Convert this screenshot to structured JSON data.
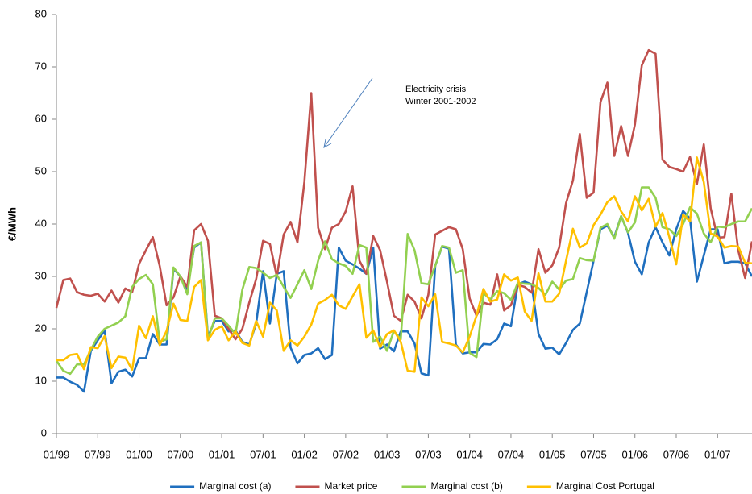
{
  "chart_data": {
    "type": "line",
    "y_label": "€/MWh",
    "annotation": [
      "Electricity crisis",
      "Winter 2001-2002"
    ],
    "categories": [
      "01/99",
      null,
      null,
      null,
      null,
      null,
      "07/99",
      null,
      null,
      null,
      null,
      null,
      "01/00",
      null,
      null,
      null,
      null,
      null,
      "07/00",
      null,
      null,
      null,
      null,
      null,
      "01/01",
      null,
      null,
      null,
      null,
      null,
      "07/01",
      null,
      null,
      null,
      null,
      null,
      "01/02",
      null,
      null,
      null,
      null,
      null,
      "07/02",
      null,
      null,
      null,
      null,
      null,
      "01/03",
      null,
      null,
      null,
      null,
      null,
      "07/03",
      null,
      null,
      null,
      null,
      null,
      "01/04",
      null,
      null,
      null,
      null,
      null,
      "07/04",
      null,
      null,
      null,
      null,
      null,
      "01/05",
      null,
      null,
      null,
      null,
      null,
      "07/05",
      null,
      null,
      null,
      null,
      null,
      "01/06",
      null,
      null,
      null,
      null,
      null,
      "07/06",
      null,
      null,
      null,
      null,
      null,
      "01/07",
      null,
      null,
      null,
      null,
      null
    ],
    "ylim": [
      0,
      80
    ],
    "yticks": [
      0,
      10,
      20,
      30,
      40,
      50,
      60,
      70,
      80
    ],
    "grid": false,
    "series": [
      {
        "name": "Marginal cost (a)",
        "color": "#1f6fbf",
        "values": [
          10.7,
          10.7,
          9.9,
          9.3,
          8,
          15.8,
          17.8,
          19.7,
          9.6,
          11.8,
          12.2,
          10.9,
          14.4,
          14.4,
          19,
          17,
          17,
          31.5,
          30,
          27.5,
          35.5,
          36.5,
          18.5,
          21.5,
          21.5,
          19.5,
          19.7,
          17.5,
          17,
          21,
          31,
          21,
          30.5,
          31,
          16.4,
          13.4,
          15,
          15.3,
          16.3,
          14.2,
          15,
          35.5,
          33,
          32.3,
          31.5,
          30.5,
          35.5,
          16.2,
          17,
          15.7,
          19.5,
          19.5,
          17.2,
          11.5,
          11.1,
          32,
          35.7,
          35.3,
          17,
          15.3,
          15.5,
          15.5,
          17.1,
          17,
          18,
          21,
          20.5,
          28.5,
          29,
          28.5,
          19,
          16.2,
          16.4,
          15.1,
          17.3,
          19.8,
          21,
          27,
          33,
          39,
          39.7,
          37.5,
          41.5,
          38.3,
          32.8,
          30.4,
          36.5,
          39.4,
          36.5,
          34,
          39,
          42.5,
          41,
          29,
          34,
          39,
          39,
          32.5,
          32.8,
          32.8,
          32.5,
          30
        ]
      },
      {
        "name": "Market price",
        "color": "#c0504d",
        "values": [
          24,
          29.3,
          29.6,
          27,
          26.5,
          26.3,
          26.7,
          25.2,
          27.3,
          25,
          27.7,
          27,
          32.4,
          35,
          37.5,
          32,
          24.5,
          26,
          30,
          28,
          38.8,
          40,
          36.8,
          22.5,
          22,
          20,
          18,
          20,
          25,
          29.5,
          36.8,
          36.2,
          30,
          38,
          40.4,
          36.5,
          48,
          65,
          39.3,
          35.2,
          39.3,
          40,
          42.4,
          47.2,
          33,
          30.5,
          37.7,
          35,
          29,
          22.5,
          21.5,
          26.5,
          25.2,
          22,
          26.5,
          38,
          38.7,
          39.4,
          39,
          35.2,
          25.8,
          22.5,
          25,
          24.6,
          30.4,
          23.5,
          24.5,
          28.4,
          28,
          26.9,
          35.2,
          30.7,
          32.1,
          35.5,
          44,
          48.3,
          57.2,
          45,
          46,
          63.3,
          67,
          53,
          58.7,
          53,
          59,
          70.3,
          73.2,
          72.5,
          52.3,
          50.9,
          50.5,
          50,
          52.8,
          47.6,
          55.2,
          43,
          37.4,
          37.5,
          45.8,
          35,
          29.7,
          36.7
        ]
      },
      {
        "name": "Marginal cost (b)",
        "color": "#92d050",
        "values": [
          13.9,
          12,
          11.4,
          13.2,
          13.2,
          16,
          18.5,
          20,
          20.6,
          21.2,
          22.4,
          28,
          29.5,
          30.3,
          28.5,
          17.5,
          18,
          31.7,
          30,
          26.6,
          35.8,
          36.5,
          18,
          22,
          22,
          20.6,
          19,
          27.5,
          31.8,
          31.6,
          30.7,
          29.7,
          30.3,
          28,
          25.9,
          28.5,
          31.2,
          27.6,
          33,
          36.7,
          33.3,
          32.5,
          32,
          30.5,
          36,
          35.5,
          17.5,
          18.5,
          15.8,
          19.6,
          18,
          38.1,
          35,
          28.7,
          28.5,
          32,
          35.8,
          35.5,
          30.7,
          31.2,
          15.4,
          14.6,
          26.8,
          25.6,
          27.2,
          26.8,
          25.5,
          28.8,
          28.6,
          28.5,
          27.8,
          26.5,
          29,
          27.5,
          29.2,
          29.5,
          33.5,
          33.1,
          33,
          39.3,
          40,
          37.2,
          41.5,
          38.4,
          40.3,
          47,
          47,
          45,
          39.4,
          39,
          37.7,
          40,
          43.2,
          42,
          38.2,
          36.5,
          39.5,
          39.4,
          40,
          40.5,
          40.5,
          43
        ]
      },
      {
        "name": "Marginal Cost Portugal",
        "color": "#ffc000",
        "values": [
          14,
          14,
          15,
          15.2,
          12.3,
          16.5,
          16.3,
          18.6,
          12.5,
          14.7,
          14.5,
          12.2,
          20.6,
          18.2,
          22.4,
          16.9,
          19.6,
          24.8,
          21.7,
          21.5,
          28,
          29.3,
          17.8,
          19.8,
          20.5,
          17.8,
          19.5,
          17.3,
          16.8,
          21.5,
          18.5,
          25,
          23.5,
          15.8,
          17.8,
          16.8,
          18.5,
          20.8,
          24.8,
          25.5,
          26.5,
          24.5,
          23.8,
          26.2,
          28.5,
          18.3,
          19.7,
          16.5,
          19,
          19.7,
          17.5,
          12,
          11.8,
          26,
          24.3,
          26.6,
          17.5,
          17.2,
          16.8,
          15.5,
          18.5,
          22.5,
          27.6,
          25.2,
          25.6,
          30.4,
          29.2,
          29.8,
          23.3,
          21.5,
          30.6,
          25.2,
          25.2,
          26.7,
          33,
          39.1,
          35.5,
          36.3,
          39.8,
          41.8,
          44.2,
          45.3,
          42.4,
          40.5,
          45.3,
          42.6,
          44.8,
          39.5,
          42.1,
          37.5,
          32.3,
          41.8,
          40.5,
          52.7,
          48,
          38.2,
          37.6,
          35.5,
          35.8,
          35.7,
          32.6,
          32.5
        ]
      }
    ]
  }
}
